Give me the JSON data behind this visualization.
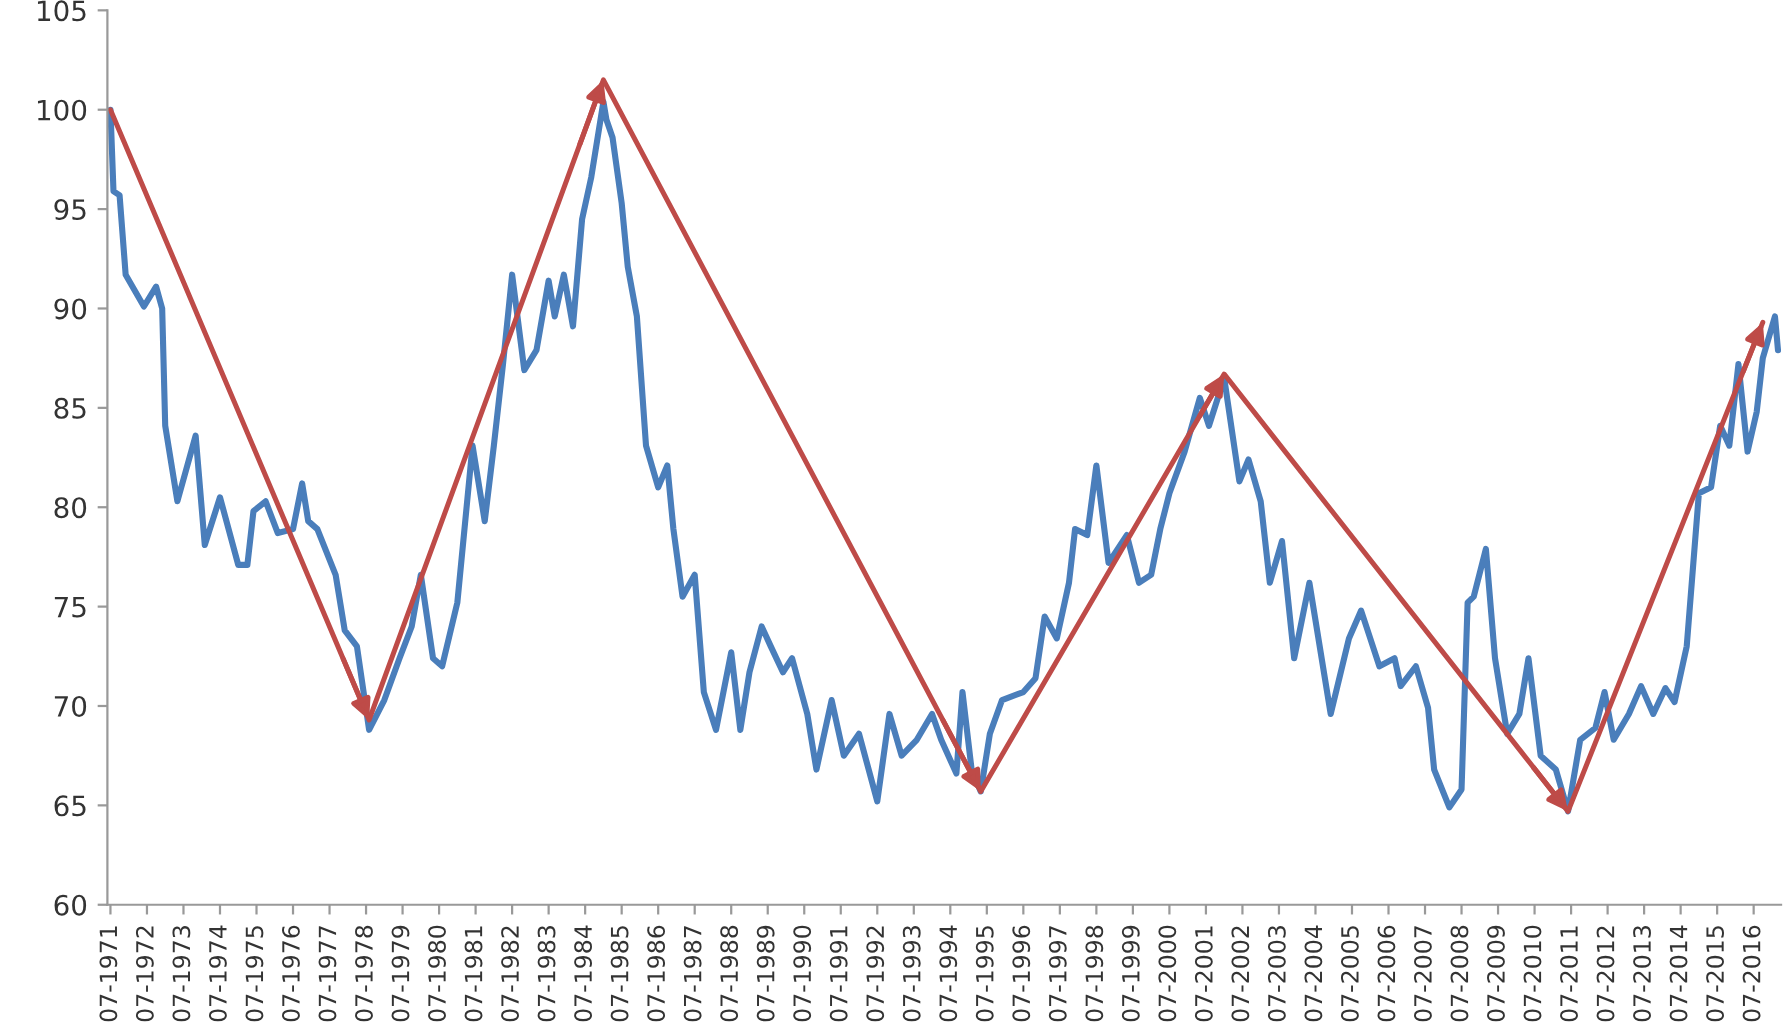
{
  "chart_data": {
    "type": "line",
    "xlim": [
      "1971-06",
      "2017-04"
    ],
    "ylim": [
      60,
      105
    ],
    "yticks": [
      60,
      65,
      70,
      75,
      80,
      85,
      90,
      95,
      100,
      105
    ],
    "xticks": [
      {
        "value": "1971-07",
        "label": "07-1971"
      },
      {
        "value": "1972-07",
        "label": "07-1972"
      },
      {
        "value": "1973-07",
        "label": "07-1973"
      },
      {
        "value": "1974-07",
        "label": "07-1974"
      },
      {
        "value": "1975-07",
        "label": "07-1975"
      },
      {
        "value": "1976-07",
        "label": "07-1976"
      },
      {
        "value": "1977-07",
        "label": "07-1977"
      },
      {
        "value": "1978-07",
        "label": "07-1978"
      },
      {
        "value": "1979-07",
        "label": "07-1979"
      },
      {
        "value": "1980-07",
        "label": "07-1980"
      },
      {
        "value": "1981-07",
        "label": "07-1981"
      },
      {
        "value": "1982-07",
        "label": "07-1982"
      },
      {
        "value": "1983-07",
        "label": "07-1983"
      },
      {
        "value": "1984-07",
        "label": "07-1984"
      },
      {
        "value": "1985-07",
        "label": "07-1985"
      },
      {
        "value": "1986-07",
        "label": "07-1986"
      },
      {
        "value": "1987-07",
        "label": "07-1987"
      },
      {
        "value": "1988-07",
        "label": "07-1988"
      },
      {
        "value": "1989-07",
        "label": "07-1989"
      },
      {
        "value": "1990-07",
        "label": "07-1990"
      },
      {
        "value": "1991-07",
        "label": "07-1991"
      },
      {
        "value": "1992-07",
        "label": "07-1992"
      },
      {
        "value": "1993-07",
        "label": "07-1993"
      },
      {
        "value": "1994-07",
        "label": "07-1994"
      },
      {
        "value": "1995-07",
        "label": "07-1995"
      },
      {
        "value": "1996-07",
        "label": "07-1996"
      },
      {
        "value": "1997-07",
        "label": "07-1997"
      },
      {
        "value": "1998-07",
        "label": "07-1998"
      },
      {
        "value": "1999-07",
        "label": "07-1999"
      },
      {
        "value": "2000-07",
        "label": "07-2000"
      },
      {
        "value": "2001-07",
        "label": "07-2001"
      },
      {
        "value": "2002-07",
        "label": "07-2002"
      },
      {
        "value": "2003-07",
        "label": "07-2003"
      },
      {
        "value": "2004-07",
        "label": "07-2004"
      },
      {
        "value": "2005-07",
        "label": "07-2005"
      },
      {
        "value": "2006-07",
        "label": "07-2006"
      },
      {
        "value": "2007-07",
        "label": "07-2007"
      },
      {
        "value": "2008-07",
        "label": "07-2008"
      },
      {
        "value": "2009-07",
        "label": "07-2009"
      },
      {
        "value": "2010-07",
        "label": "07-2010"
      },
      {
        "value": "2011-07",
        "label": "07-2011"
      },
      {
        "value": "2012-07",
        "label": "07-2012"
      },
      {
        "value": "2013-07",
        "label": "07-2013"
      },
      {
        "value": "2014-07",
        "label": "07-2014"
      },
      {
        "value": "2015-07",
        "label": "07-2015"
      },
      {
        "value": "2016-07",
        "label": "07-2016"
      }
    ],
    "series": [
      {
        "color": "#4a7ebb",
        "x": [
          "1971-07",
          "1971-08",
          "1971-10",
          "1971-12",
          "1972-06",
          "1972-10",
          "1972-12",
          "1973-01",
          "1973-05",
          "1973-11",
          "1974-02",
          "1974-07",
          "1975-01",
          "1975-04",
          "1975-06",
          "1975-10",
          "1976-02",
          "1976-07",
          "1976-10",
          "1976-12",
          "1977-03",
          "1977-09",
          "1977-12",
          "1978-04",
          "1978-08",
          "1979-01",
          "1979-06",
          "1979-10",
          "1980-01",
          "1980-05",
          "1980-08",
          "1981-01",
          "1981-06",
          "1981-10",
          "1982-01",
          "1982-04",
          "1982-07",
          "1982-11",
          "1983-03",
          "1983-07",
          "1983-09",
          "1983-12",
          "1984-03",
          "1984-06",
          "1984-09",
          "1985-01",
          "1985-02",
          "1985-04",
          "1985-07",
          "1985-09",
          "1985-12",
          "1986-03",
          "1986-07",
          "1986-10",
          "1986-12",
          "1987-03",
          "1987-07",
          "1987-10",
          "1988-02",
          "1988-07",
          "1988-10",
          "1989-01",
          "1989-05",
          "1989-08",
          "1989-12",
          "1990-03",
          "1990-08",
          "1990-11",
          "1991-04",
          "1991-08",
          "1992-01",
          "1992-07",
          "1992-11",
          "1993-03",
          "1993-08",
          "1994-01",
          "1994-04",
          "1994-09",
          "1994-11",
          "1995-02",
          "1995-05",
          "1995-08",
          "1995-12",
          "1996-07",
          "1996-11",
          "1997-02",
          "1997-06",
          "1997-10",
          "1997-12",
          "1998-04",
          "1998-07",
          "1998-11",
          "1999-05",
          "1999-09",
          "2000-01",
          "2000-04",
          "2000-07",
          "2000-12",
          "2001-05",
          "2001-08",
          "2002-01",
          "2002-06",
          "2002-09",
          "2003-01",
          "2003-04",
          "2003-08",
          "2003-12",
          "2004-05",
          "2004-12",
          "2005-06",
          "2005-10",
          "2006-01",
          "2006-04",
          "2006-09",
          "2006-11",
          "2007-04",
          "2007-08",
          "2007-10",
          "2008-03",
          "2008-07",
          "2008-09",
          "2008-11",
          "2009-03",
          "2009-06",
          "2009-10",
          "2010-02",
          "2010-05",
          "2010-09",
          "2011-02",
          "2011-06",
          "2011-10",
          "2012-03",
          "2012-06",
          "2012-09",
          "2013-02",
          "2013-06",
          "2013-10",
          "2014-02",
          "2014-05",
          "2014-09",
          "2015-01",
          "2015-05",
          "2015-08",
          "2015-11",
          "2016-02",
          "2016-05",
          "2016-08",
          "2016-10",
          "2017-02",
          "2017-03"
        ],
        "values": [
          100,
          95.9,
          95.7,
          91.7,
          90.1,
          91.1,
          90,
          84.1,
          80.3,
          83.6,
          78.1,
          80.5,
          77.1,
          77.1,
          79.8,
          80.3,
          78.7,
          78.9,
          81.2,
          79.3,
          78.9,
          76.6,
          73.8,
          73,
          68.8,
          70.3,
          72.4,
          74,
          76.6,
          72.4,
          72,
          75.2,
          83.1,
          79.3,
          83.1,
          87.2,
          91.7,
          86.9,
          87.9,
          91.4,
          89.6,
          91.7,
          89.1,
          94.5,
          96.6,
          100.4,
          99.5,
          98.6,
          95.3,
          92.1,
          89.6,
          83.1,
          81,
          82.1,
          78.9,
          75.5,
          76.6,
          70.7,
          68.8,
          72.7,
          68.8,
          71.7,
          74,
          73,
          71.7,
          72.4,
          69.6,
          66.8,
          70.3,
          67.5,
          68.6,
          65.2,
          69.6,
          67.5,
          68.3,
          69.6,
          68.3,
          66.6,
          70.7,
          66.8,
          65.7,
          68.6,
          70.3,
          70.7,
          71.4,
          74.5,
          73.4,
          76.2,
          78.9,
          78.6,
          82.1,
          77.2,
          78.6,
          76.2,
          76.6,
          78.9,
          80.7,
          82.8,
          85.5,
          84.1,
          86.5,
          81.3,
          82.4,
          80.3,
          76.2,
          78.3,
          72.4,
          76.2,
          69.6,
          73.4,
          74.8,
          73.4,
          72,
          72.4,
          71,
          72,
          69.9,
          66.8,
          64.9,
          65.8,
          75.2,
          75.5,
          77.9,
          72.4,
          68.6,
          69.6,
          72.4,
          67.5,
          66.8,
          64.7,
          68.3,
          68.9,
          70.7,
          68.3,
          69.6,
          71,
          69.6,
          70.9,
          70.2,
          73,
          80.7,
          81,
          84.1,
          83.1,
          87.2,
          82.8,
          84.8,
          87.5,
          89.6,
          87.9
        ]
      },
      {
        "color": "#be4b48",
        "x": [
          "1971-07",
          "1978-08",
          "1985-01",
          "1995-05",
          "2002-01",
          "2011-06",
          "2016-10"
        ],
        "values": [
          100,
          69.3,
          101.5,
          65.7,
          86.7,
          64.7,
          89.3
        ]
      }
    ]
  }
}
